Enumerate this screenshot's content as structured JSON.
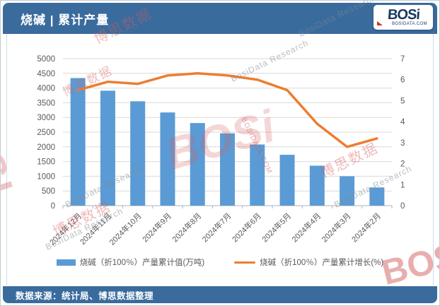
{
  "header": {
    "title": "烧碱 | 累计产量"
  },
  "logo": {
    "brand": "BOSi",
    "domain": "BOSIDATA.COM"
  },
  "footer": {
    "source": "数据来源：统计局、博思数据整理"
  },
  "watermarks": {
    "brand": "BOSi",
    "brand_caps": "BOSI",
    "cn": "博思数据",
    "research": "BosiData Research",
    "domain": "BOSIDATA.COM"
  },
  "chart_data": {
    "type": "combo",
    "categories": [
      "2024年12月",
      "2024年11月",
      "2024年10月",
      "2024年9月",
      "2024年8月",
      "2024年7月",
      "2024年6月",
      "2024年5月",
      "2024年4月",
      "2024年3月",
      "2024年2月"
    ],
    "series": [
      {
        "name": "烧碱（折100％）产量累计值(万吨)",
        "type": "bar",
        "axis": "left",
        "color": "#5b9bd5",
        "values": [
          4340,
          3910,
          3550,
          3170,
          2810,
          2460,
          2080,
          1730,
          1360,
          1000,
          620
        ]
      },
      {
        "name": "烧碱（折100％）产量累计增长(%)",
        "type": "line",
        "axis": "right",
        "color": "#ed7d31",
        "values": [
          5.5,
          5.9,
          5.8,
          6.2,
          6.3,
          6.2,
          6.0,
          5.5,
          3.9,
          2.8,
          3.2
        ]
      }
    ],
    "left_axis": {
      "min": 0,
      "max": 5000,
      "step": 500,
      "ticks": [
        0,
        500,
        1000,
        1500,
        2000,
        2500,
        3000,
        3500,
        4000,
        4500,
        5000
      ]
    },
    "right_axis": {
      "min": 0,
      "max": 7,
      "step": 1,
      "ticks": [
        0,
        1,
        2,
        3,
        4,
        5,
        6,
        7
      ]
    },
    "grid": true,
    "legend_position": "bottom",
    "title": "烧碱 | 累计产量"
  }
}
